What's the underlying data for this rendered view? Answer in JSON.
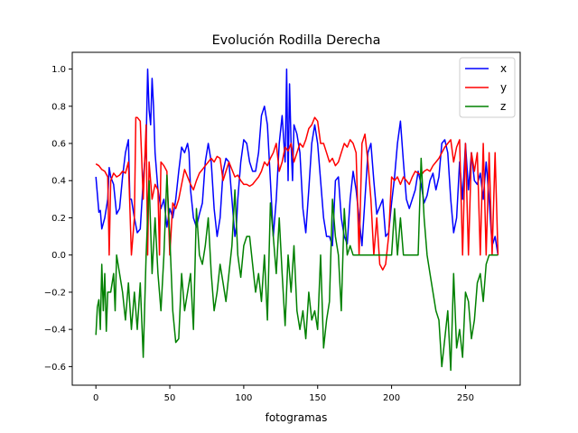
{
  "chart_data": {
    "type": "line",
    "title": "Evolución Rodilla Derecha",
    "xlabel": "fotogramas",
    "ylabel": "",
    "xlim": [
      -16,
      287
    ],
    "ylim": [
      -0.7,
      1.09
    ],
    "xticks": [
      0,
      50,
      100,
      150,
      200,
      250
    ],
    "xtick_labels": [
      "0",
      "50",
      "100",
      "150",
      "200",
      "250"
    ],
    "yticks": [
      -0.6,
      -0.4,
      -0.2,
      0.0,
      0.2,
      0.4,
      0.6,
      0.8,
      1.0
    ],
    "ytick_labels": [
      "−0.6",
      "−0.4",
      "−0.2",
      "0.0",
      "0.2",
      "0.4",
      "0.6",
      "0.8",
      "1.0"
    ],
    "grid": false,
    "legend": "top-right",
    "series": [
      {
        "name": "x",
        "color": "#0000ff",
        "x": [
          0,
          2,
          3,
          4,
          6,
          8,
          9,
          10,
          12,
          14,
          16,
          18,
          20,
          22,
          23,
          24,
          26,
          28,
          30,
          32,
          34,
          35,
          36,
          37,
          38,
          39,
          40,
          42,
          44,
          46,
          48,
          50,
          52,
          54,
          56,
          58,
          60,
          62,
          63,
          64,
          66,
          68,
          70,
          72,
          74,
          76,
          78,
          80,
          82,
          84,
          86,
          88,
          90,
          92,
          94,
          95,
          96,
          98,
          100,
          102,
          104,
          106,
          108,
          110,
          112,
          114,
          116,
          118,
          120,
          122,
          124,
          126,
          128,
          129,
          130,
          131,
          132,
          133,
          134,
          136,
          138,
          140,
          142,
          144,
          146,
          148,
          150,
          152,
          154,
          156,
          158,
          160,
          162,
          164,
          166,
          168,
          170,
          172,
          174,
          176,
          178,
          180,
          182,
          184,
          186,
          188,
          190,
          192,
          194,
          196,
          198,
          200,
          202,
          204,
          206,
          208,
          210,
          212,
          214,
          216,
          218,
          220,
          222,
          224,
          226,
          228,
          230,
          232,
          234,
          236,
          238,
          240,
          242,
          244,
          246,
          248,
          250,
          252,
          254,
          256,
          258,
          260,
          262,
          264,
          266,
          268,
          270,
          272
        ],
        "y": [
          0.42,
          0.23,
          0.24,
          0.14,
          0.2,
          0.3,
          0.47,
          0.42,
          0.38,
          0.22,
          0.25,
          0.42,
          0.55,
          0.62,
          0.3,
          0.3,
          0.2,
          0.12,
          0.14,
          0.4,
          0.6,
          1.0,
          0.78,
          0.7,
          0.95,
          0.8,
          0.55,
          0.35,
          0.25,
          0.3,
          0.15,
          0.25,
          0.2,
          0.3,
          0.45,
          0.58,
          0.55,
          0.6,
          0.55,
          0.35,
          0.2,
          0.15,
          0.22,
          0.28,
          0.5,
          0.6,
          0.5,
          0.25,
          0.1,
          0.2,
          0.45,
          0.52,
          0.5,
          0.3,
          0.1,
          0.15,
          0.3,
          0.5,
          0.62,
          0.6,
          0.5,
          0.45,
          0.45,
          0.55,
          0.75,
          0.8,
          0.7,
          0.4,
          0.1,
          0.3,
          0.6,
          0.75,
          0.5,
          1.0,
          0.4,
          0.92,
          0.6,
          0.4,
          0.7,
          0.65,
          0.55,
          0.25,
          0.12,
          0.35,
          0.6,
          0.7,
          0.6,
          0.4,
          0.2,
          0.1,
          0.1,
          0.05,
          0.4,
          0.42,
          0.2,
          0.1,
          0.06,
          0.3,
          0.45,
          0.35,
          0.2,
          0.05,
          0.3,
          0.55,
          0.6,
          0.4,
          0.22,
          0.26,
          0.3,
          0.1,
          0.12,
          0.28,
          0.42,
          0.6,
          0.72,
          0.5,
          0.3,
          0.25,
          0.3,
          0.35,
          0.45,
          0.38,
          0.28,
          0.32,
          0.4,
          0.44,
          0.35,
          0.42,
          0.6,
          0.62,
          0.55,
          0.3,
          0.12,
          0.2,
          0.5,
          0.3,
          0.6,
          0.35,
          0.55,
          0.4,
          0.38,
          0.44,
          0.3,
          0.5,
          0.3,
          0.05,
          0.1,
          0.0
        ]
      },
      {
        "name": "y",
        "color": "#ff0000",
        "x": [
          0,
          2,
          4,
          6,
          8,
          9,
          10,
          12,
          14,
          16,
          18,
          20,
          22,
          24,
          26,
          27,
          28,
          30,
          32,
          34,
          35,
          36,
          38,
          40,
          42,
          43,
          44,
          46,
          48,
          50,
          52,
          54,
          56,
          58,
          60,
          62,
          64,
          66,
          68,
          70,
          72,
          74,
          76,
          78,
          80,
          82,
          84,
          86,
          88,
          90,
          92,
          94,
          96,
          98,
          100,
          102,
          104,
          106,
          108,
          110,
          112,
          114,
          116,
          118,
          120,
          122,
          124,
          126,
          128,
          130,
          132,
          134,
          136,
          138,
          140,
          142,
          144,
          146,
          148,
          150,
          152,
          154,
          156,
          158,
          160,
          162,
          164,
          166,
          168,
          170,
          172,
          174,
          176,
          178,
          180,
          182,
          184,
          186,
          188,
          190,
          192,
          194,
          196,
          198,
          200,
          202,
          204,
          206,
          208,
          210,
          212,
          214,
          216,
          218,
          220,
          222,
          224,
          226,
          228,
          230,
          232,
          234,
          236,
          238,
          240,
          242,
          244,
          246,
          248,
          250,
          252,
          254,
          256,
          258,
          260,
          262,
          264,
          266,
          268,
          270,
          272
        ],
        "y": [
          0.49,
          0.48,
          0.46,
          0.45,
          0.42,
          0.0,
          0.4,
          0.44,
          0.42,
          0.43,
          0.45,
          0.44,
          0.5,
          0.0,
          0.2,
          0.74,
          0.74,
          0.72,
          0.3,
          0.7,
          0.0,
          0.5,
          0.3,
          0.38,
          0.35,
          0.0,
          0.5,
          0.48,
          0.45,
          0.0,
          0.28,
          0.25,
          0.3,
          0.38,
          0.46,
          0.42,
          0.38,
          0.35,
          0.4,
          0.44,
          0.46,
          0.48,
          0.5,
          0.52,
          0.5,
          0.53,
          0.52,
          0.4,
          0.45,
          0.5,
          0.46,
          0.42,
          0.43,
          0.4,
          0.38,
          0.38,
          0.37,
          0.38,
          0.4,
          0.42,
          0.45,
          0.5,
          0.48,
          0.52,
          0.55,
          0.6,
          0.45,
          0.5,
          0.58,
          0.56,
          0.6,
          0.5,
          0.55,
          0.6,
          0.58,
          0.62,
          0.68,
          0.7,
          0.74,
          0.72,
          0.6,
          0.6,
          0.55,
          0.5,
          0.52,
          0.48,
          0.5,
          0.55,
          0.6,
          0.58,
          0.62,
          0.6,
          0.55,
          0.0,
          0.6,
          0.65,
          0.5,
          0.3,
          0.0,
          0.2,
          -0.05,
          -0.08,
          -0.05,
          0.1,
          0.42,
          0.4,
          0.42,
          0.38,
          0.42,
          0.4,
          0.38,
          0.42,
          0.45,
          0.44,
          0.43,
          0.45,
          0.46,
          0.45,
          0.48,
          0.5,
          0.52,
          0.55,
          0.58,
          0.6,
          0.62,
          0.5,
          0.58,
          0.62,
          0.0,
          0.6,
          0.0,
          0.55,
          0.45,
          0.55,
          0.0,
          0.6,
          0.0,
          0.55,
          0.0,
          0.55,
          0.0
        ]
      },
      {
        "name": "z",
        "color": "#008000",
        "x": [
          0,
          1,
          2,
          3,
          4,
          5,
          6,
          7,
          8,
          10,
          12,
          13,
          14,
          16,
          18,
          20,
          22,
          24,
          26,
          28,
          30,
          32,
          34,
          36,
          38,
          40,
          42,
          44,
          46,
          48,
          50,
          52,
          54,
          56,
          58,
          60,
          62,
          64,
          66,
          68,
          70,
          72,
          74,
          76,
          78,
          80,
          82,
          84,
          86,
          88,
          90,
          92,
          94,
          96,
          98,
          100,
          102,
          104,
          106,
          108,
          110,
          112,
          114,
          116,
          118,
          120,
          122,
          124,
          126,
          128,
          130,
          132,
          134,
          136,
          138,
          140,
          142,
          144,
          146,
          148,
          150,
          152,
          154,
          156,
          158,
          160,
          162,
          164,
          166,
          168,
          170,
          172,
          174,
          176,
          178,
          180,
          182,
          184,
          186,
          188,
          190,
          192,
          194,
          196,
          198,
          200,
          202,
          204,
          206,
          208,
          210,
          212,
          214,
          216,
          218,
          220,
          222,
          224,
          226,
          228,
          230,
          232,
          234,
          236,
          238,
          240,
          242,
          244,
          246,
          248,
          250,
          252,
          254,
          256,
          258,
          260,
          262,
          264,
          266,
          268,
          270,
          272
        ],
        "y": [
          -0.43,
          -0.28,
          -0.24,
          -0.4,
          -0.05,
          -0.3,
          -0.1,
          -0.41,
          -0.2,
          -0.2,
          -0.1,
          -0.3,
          0.0,
          -0.1,
          -0.2,
          -0.35,
          -0.15,
          -0.4,
          -0.2,
          -0.4,
          -0.15,
          -0.55,
          0.0,
          0.4,
          -0.1,
          0.2,
          -0.1,
          -0.3,
          0.0,
          0.43,
          0.1,
          -0.3,
          -0.47,
          -0.45,
          -0.1,
          -0.3,
          -0.2,
          -0.1,
          -0.4,
          0.25,
          0.0,
          -0.05,
          0.05,
          0.2,
          -0.1,
          -0.3,
          -0.2,
          -0.05,
          -0.15,
          -0.25,
          -0.1,
          0.05,
          0.35,
          0.0,
          -0.12,
          0.05,
          0.1,
          0.1,
          -0.05,
          -0.2,
          -0.1,
          -0.25,
          0.0,
          -0.35,
          0.28,
          0.1,
          -0.1,
          0.2,
          -0.1,
          -0.38,
          0.0,
          -0.2,
          0.05,
          -0.3,
          -0.4,
          -0.3,
          -0.45,
          -0.2,
          -0.35,
          -0.3,
          -0.4,
          0.0,
          -0.5,
          -0.35,
          -0.25,
          0.3,
          0.1,
          0.0,
          -0.3,
          0.25,
          0.0,
          0.05,
          0.0,
          0.0,
          0.0,
          0.0,
          0.0,
          0.0,
          0.0,
          0.0,
          0.0,
          0.0,
          0.0,
          0.0,
          0.0,
          0.0,
          0.25,
          0.0,
          0.2,
          0.0,
          0.0,
          0.0,
          0.0,
          0.0,
          0.0,
          0.52,
          0.2,
          0.0,
          -0.1,
          -0.2,
          -0.3,
          -0.35,
          -0.6,
          -0.45,
          -0.3,
          -0.62,
          -0.1,
          -0.5,
          -0.4,
          -0.55,
          -0.2,
          -0.25,
          -0.45,
          -0.35,
          -0.15,
          -0.1,
          -0.25,
          -0.05,
          0.0,
          0.0,
          0.0,
          0.0
        ]
      }
    ]
  }
}
